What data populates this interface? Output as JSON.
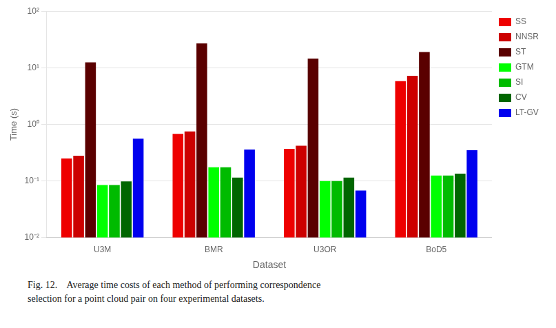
{
  "chart_data": {
    "type": "bar",
    "xlabel": "Dataset",
    "ylabel": "Time (s)",
    "categories": [
      "U3M",
      "BMR",
      "U3OR",
      "BoD5"
    ],
    "series": [
      {
        "name": "SS",
        "color": "#ee0000",
        "values": [
          0.25,
          0.68,
          0.37,
          5.8
        ]
      },
      {
        "name": "NNSR",
        "color": "#cc0000",
        "values": [
          0.28,
          0.75,
          0.42,
          7.2
        ]
      },
      {
        "name": "ST",
        "color": "#5a0000",
        "values": [
          12.5,
          27.0,
          14.5,
          19.0
        ]
      },
      {
        "name": "GTM",
        "color": "#00ff00",
        "values": [
          0.085,
          0.175,
          0.1,
          0.125
        ]
      },
      {
        "name": "SI",
        "color": "#00bb00",
        "values": [
          0.085,
          0.175,
          0.1,
          0.125
        ]
      },
      {
        "name": "CV",
        "color": "#006600",
        "values": [
          0.098,
          0.115,
          0.115,
          0.135
        ]
      },
      {
        "name": "LT-GV",
        "color": "#0000ee",
        "values": [
          0.56,
          0.36,
          0.068,
          0.35
        ]
      }
    ],
    "log": "y",
    "ylim": [
      0.01,
      100
    ],
    "yticks": [
      {
        "value": 0.01,
        "label": "10⁻²"
      },
      {
        "value": 0.1,
        "label": "10⁻¹"
      },
      {
        "value": 1,
        "label": "10⁰"
      },
      {
        "value": 10,
        "label": "10¹"
      },
      {
        "value": 100,
        "label": "10²"
      }
    ],
    "grid": true,
    "legend": "right",
    "annotations": [
      "Fig. 12.    Average time costs of each method of performing correspondence",
      "selection for a point cloud pair on four experimental datasets."
    ]
  }
}
